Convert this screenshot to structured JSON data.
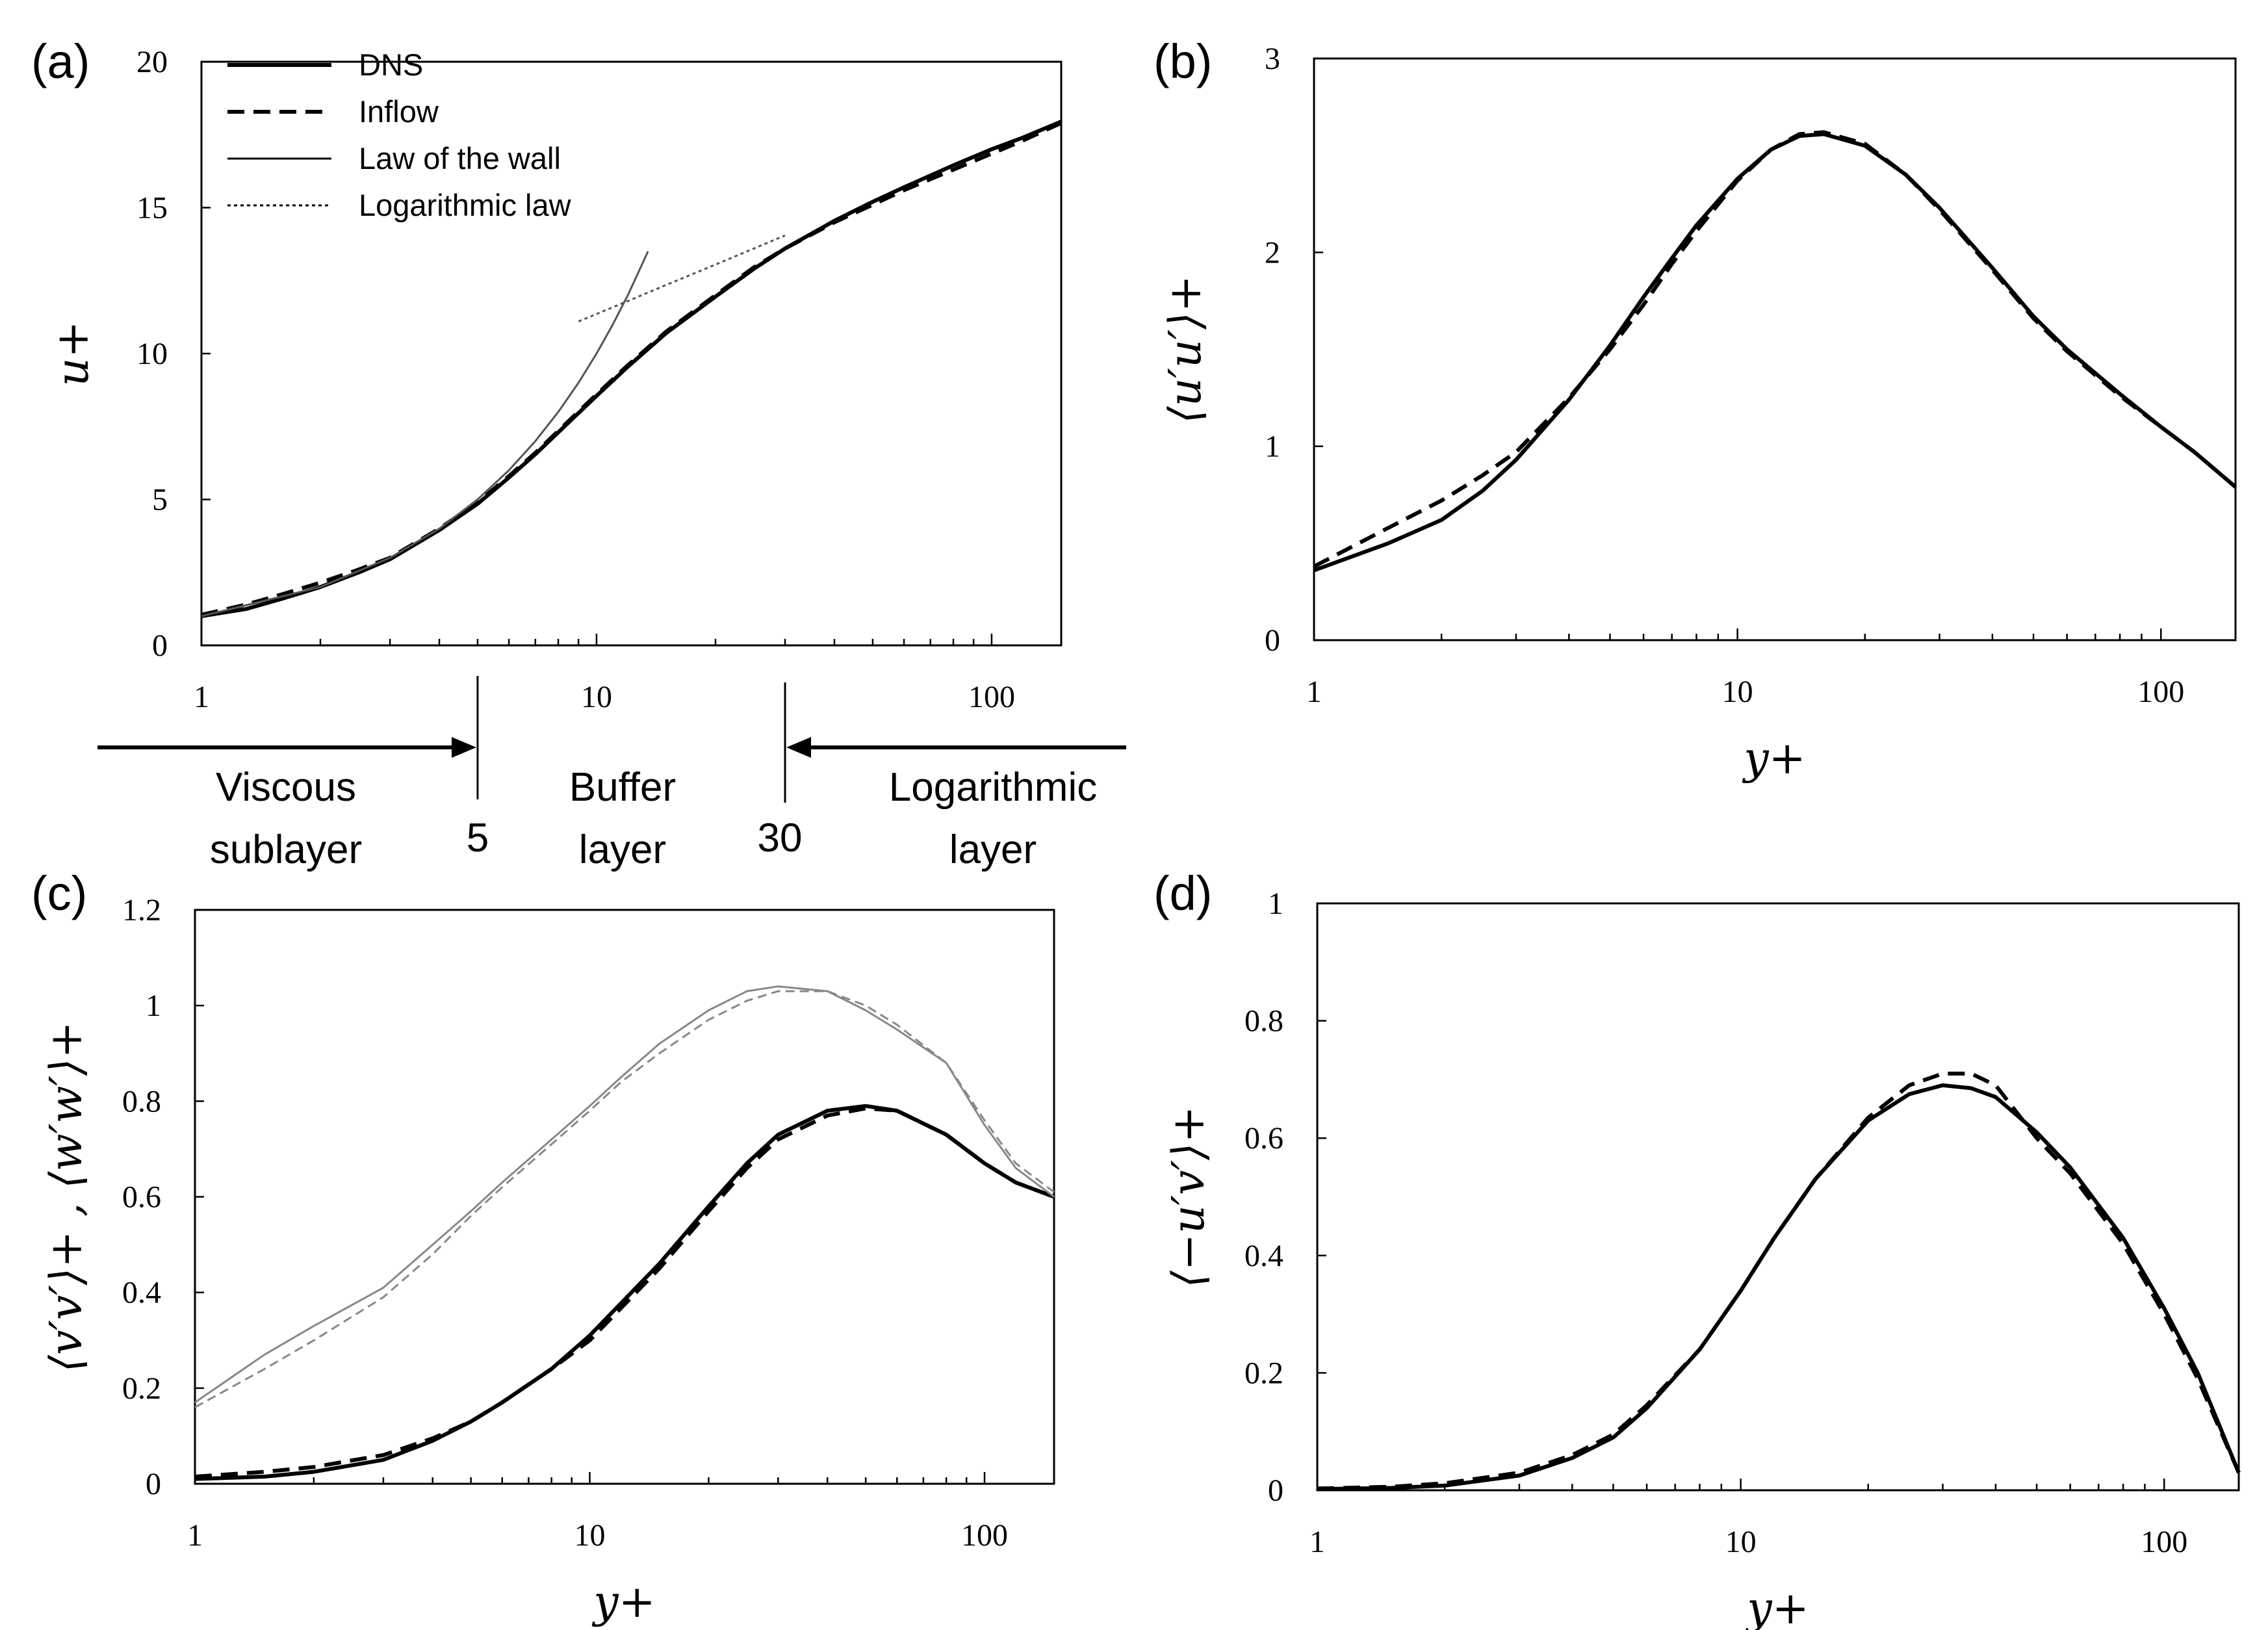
{
  "chart_data": [
    {
      "id": "a",
      "type": "line",
      "panel_label": "(a)",
      "xscale": "log",
      "xlim": [
        1,
        150
      ],
      "ylim": [
        0,
        20
      ],
      "xticks": [
        1,
        10,
        100
      ],
      "yticks": [
        0,
        5,
        10,
        15,
        20
      ],
      "xlabel": "",
      "ylabel": "u+",
      "legend": {
        "placement": "top-left",
        "entries": [
          {
            "label": "DNS",
            "style": "thick-solid"
          },
          {
            "label": "Inflow",
            "style": "thick-dashed"
          },
          {
            "label": "Law of the wall",
            "style": "thin-solid"
          },
          {
            "label": "Logarithmic law",
            "style": "dotted"
          }
        ]
      },
      "series": [
        {
          "name": "DNS",
          "color": "#000000",
          "style": "thick-solid",
          "x": [
            1,
            1.3,
            1.6,
            2,
            2.5,
            3,
            4,
            5,
            6,
            7,
            8,
            10,
            12,
            15,
            20,
            25,
            30,
            40,
            50,
            60,
            80,
            100,
            120,
            150
          ],
          "y": [
            1.0,
            1.25,
            1.6,
            2.0,
            2.5,
            2.95,
            3.95,
            4.85,
            5.75,
            6.55,
            7.3,
            8.55,
            9.55,
            10.7,
            11.95,
            12.9,
            13.6,
            14.55,
            15.2,
            15.7,
            16.45,
            17.0,
            17.4,
            17.95
          ]
        },
        {
          "name": "Inflow",
          "color": "#000000",
          "style": "thick-dashed",
          "x": [
            1,
            1.3,
            1.6,
            2,
            2.5,
            3,
            4,
            5,
            6,
            7,
            8,
            10,
            12,
            15,
            20,
            25,
            30,
            40,
            50,
            60,
            80,
            100,
            120,
            150
          ],
          "y": [
            1.05,
            1.4,
            1.75,
            2.15,
            2.6,
            3.0,
            4.0,
            4.9,
            5.8,
            6.6,
            7.35,
            8.6,
            9.6,
            10.75,
            12.0,
            12.95,
            13.6,
            14.5,
            15.1,
            15.6,
            16.3,
            16.85,
            17.3,
            17.9
          ]
        },
        {
          "name": "Law of the wall",
          "color": "#555555",
          "style": "thin-solid",
          "x": [
            1,
            2,
            3,
            4,
            5,
            6,
            7,
            8,
            9,
            10,
            11,
            12,
            13.5
          ],
          "y": [
            1,
            2,
            3,
            4,
            5,
            6,
            7,
            8,
            9,
            10,
            11,
            12,
            13.5
          ]
        },
        {
          "name": "Logarithmic law",
          "color": "#555555",
          "style": "dotted",
          "x": [
            9,
            12,
            15,
            20,
            25,
            30
          ],
          "y": [
            11.1,
            11.8,
            12.35,
            13.05,
            13.6,
            14.05
          ]
        }
      ],
      "regions": [
        {
          "label_line1": "Viscous",
          "label_line2": "sublayer",
          "boundary_label": "5"
        },
        {
          "label_line1": "Buffer",
          "label_line2": "layer",
          "boundary_label": "30"
        },
        {
          "label_line1": "Logarithmic",
          "label_line2": "layer"
        }
      ]
    },
    {
      "id": "b",
      "type": "line",
      "panel_label": "(b)",
      "xscale": "log",
      "xlim": [
        1,
        150
      ],
      "ylim": [
        0,
        3
      ],
      "xticks": [
        1,
        10,
        100
      ],
      "yticks": [
        0,
        1,
        2,
        3
      ],
      "xlabel": "y+",
      "ylabel": "⟨u′u′⟩+",
      "series": [
        {
          "name": "DNS",
          "color": "#000000",
          "style": "thick-solid",
          "x": [
            1,
            1.5,
            2,
            2.5,
            3,
            4,
            5,
            6,
            7,
            8,
            10,
            12,
            14,
            16,
            20,
            25,
            30,
            40,
            50,
            60,
            80,
            100,
            120,
            150
          ],
          "y": [
            0.36,
            0.5,
            0.62,
            0.77,
            0.93,
            1.24,
            1.52,
            1.77,
            1.97,
            2.14,
            2.38,
            2.53,
            2.6,
            2.61,
            2.55,
            2.4,
            2.23,
            1.92,
            1.67,
            1.5,
            1.27,
            1.1,
            0.97,
            0.79
          ]
        },
        {
          "name": "Inflow",
          "color": "#000000",
          "style": "thick-dashed",
          "x": [
            1,
            1.5,
            2,
            2.5,
            3,
            4,
            5,
            6,
            7,
            8,
            10,
            12,
            14,
            16,
            20,
            25,
            30,
            40,
            50,
            60,
            80,
            100,
            120,
            150
          ],
          "y": [
            0.38,
            0.58,
            0.72,
            0.85,
            0.97,
            1.25,
            1.5,
            1.73,
            1.94,
            2.11,
            2.37,
            2.53,
            2.61,
            2.62,
            2.56,
            2.4,
            2.22,
            1.91,
            1.66,
            1.49,
            1.26,
            1.1,
            0.97,
            0.79
          ]
        }
      ]
    },
    {
      "id": "c",
      "type": "line",
      "panel_label": "(c)",
      "xscale": "log",
      "xlim": [
        1,
        150
      ],
      "ylim": [
        0,
        1.2
      ],
      "xticks": [
        1,
        10,
        100
      ],
      "yticks": [
        0,
        0.2,
        0.4,
        0.6,
        0.8,
        1,
        1.2
      ],
      "xlabel": "y+",
      "ylabel": "⟨v′v′⟩+ , ⟨w′w′⟩+",
      "series": [
        {
          "name": "DNS ⟨v′v′⟩+",
          "color": "#000000",
          "style": "thick-solid",
          "x": [
            1,
            1.5,
            2,
            3,
            4,
            5,
            6,
            8,
            10,
            15,
            20,
            25,
            30,
            40,
            50,
            60,
            80,
            100,
            120,
            150
          ],
          "y": [
            0.01,
            0.015,
            0.025,
            0.05,
            0.09,
            0.13,
            0.17,
            0.24,
            0.31,
            0.46,
            0.58,
            0.67,
            0.73,
            0.78,
            0.79,
            0.78,
            0.73,
            0.67,
            0.63,
            0.6
          ]
        },
        {
          "name": "Inflow ⟨v′v′⟩+",
          "color": "#000000",
          "style": "thick-dashed",
          "x": [
            1,
            1.5,
            2,
            3,
            4,
            5,
            6,
            8,
            10,
            15,
            20,
            25,
            30,
            40,
            50,
            60,
            80,
            100,
            120,
            150
          ],
          "y": [
            0.015,
            0.025,
            0.035,
            0.06,
            0.095,
            0.13,
            0.17,
            0.24,
            0.3,
            0.45,
            0.57,
            0.66,
            0.72,
            0.77,
            0.785,
            0.78,
            0.73,
            0.67,
            0.63,
            0.6
          ]
        },
        {
          "name": "DNS ⟨w′w′⟩+",
          "color": "#888888",
          "style": "thin-solid",
          "x": [
            1,
            1.5,
            2,
            3,
            4,
            5,
            6,
            8,
            10,
            12,
            15,
            20,
            25,
            30,
            40,
            50,
            60,
            80,
            100,
            120,
            150
          ],
          "y": [
            0.17,
            0.27,
            0.33,
            0.41,
            0.5,
            0.57,
            0.63,
            0.72,
            0.79,
            0.85,
            0.92,
            0.99,
            1.03,
            1.04,
            1.03,
            0.99,
            0.95,
            0.88,
            0.75,
            0.66,
            0.6
          ]
        },
        {
          "name": "Inflow ⟨w′w′⟩+",
          "color": "#888888",
          "style": "thin-dashed",
          "x": [
            1,
            1.5,
            2,
            3,
            4,
            5,
            6,
            8,
            10,
            12,
            15,
            20,
            25,
            30,
            40,
            50,
            60,
            80,
            100,
            120,
            150
          ],
          "y": [
            0.16,
            0.24,
            0.3,
            0.39,
            0.48,
            0.56,
            0.62,
            0.71,
            0.78,
            0.84,
            0.9,
            0.97,
            1.01,
            1.03,
            1.03,
            1.0,
            0.96,
            0.88,
            0.76,
            0.67,
            0.61
          ]
        }
      ]
    },
    {
      "id": "d",
      "type": "line",
      "panel_label": "(d)",
      "xscale": "log",
      "xlim": [
        1,
        150
      ],
      "ylim": [
        0,
        1
      ],
      "xticks": [
        1,
        10,
        100
      ],
      "yticks": [
        0,
        0.2,
        0.4,
        0.6,
        0.8,
        1
      ],
      "xlabel": "y+",
      "ylabel": "⟨−u′v′⟩+",
      "series": [
        {
          "name": "DNS",
          "color": "#000000",
          "style": "thick-solid",
          "x": [
            1,
            1.5,
            2,
            3,
            4,
            5,
            6,
            8,
            10,
            12,
            15,
            20,
            25,
            30,
            35,
            40,
            50,
            60,
            80,
            100,
            120,
            150
          ],
          "y": [
            0.002,
            0.004,
            0.008,
            0.025,
            0.055,
            0.09,
            0.14,
            0.24,
            0.34,
            0.43,
            0.53,
            0.63,
            0.675,
            0.69,
            0.685,
            0.67,
            0.61,
            0.55,
            0.43,
            0.31,
            0.2,
            0.03
          ]
        },
        {
          "name": "Inflow",
          "color": "#000000",
          "style": "thick-dashed",
          "x": [
            1,
            1.5,
            2,
            3,
            4,
            5,
            6,
            8,
            10,
            12,
            15,
            20,
            25,
            30,
            35,
            40,
            50,
            60,
            80,
            100,
            120,
            150
          ],
          "y": [
            0.003,
            0.006,
            0.012,
            0.03,
            0.06,
            0.095,
            0.145,
            0.24,
            0.34,
            0.43,
            0.53,
            0.635,
            0.69,
            0.71,
            0.71,
            0.69,
            0.6,
            0.54,
            0.42,
            0.3,
            0.19,
            0.03
          ]
        }
      ]
    }
  ]
}
